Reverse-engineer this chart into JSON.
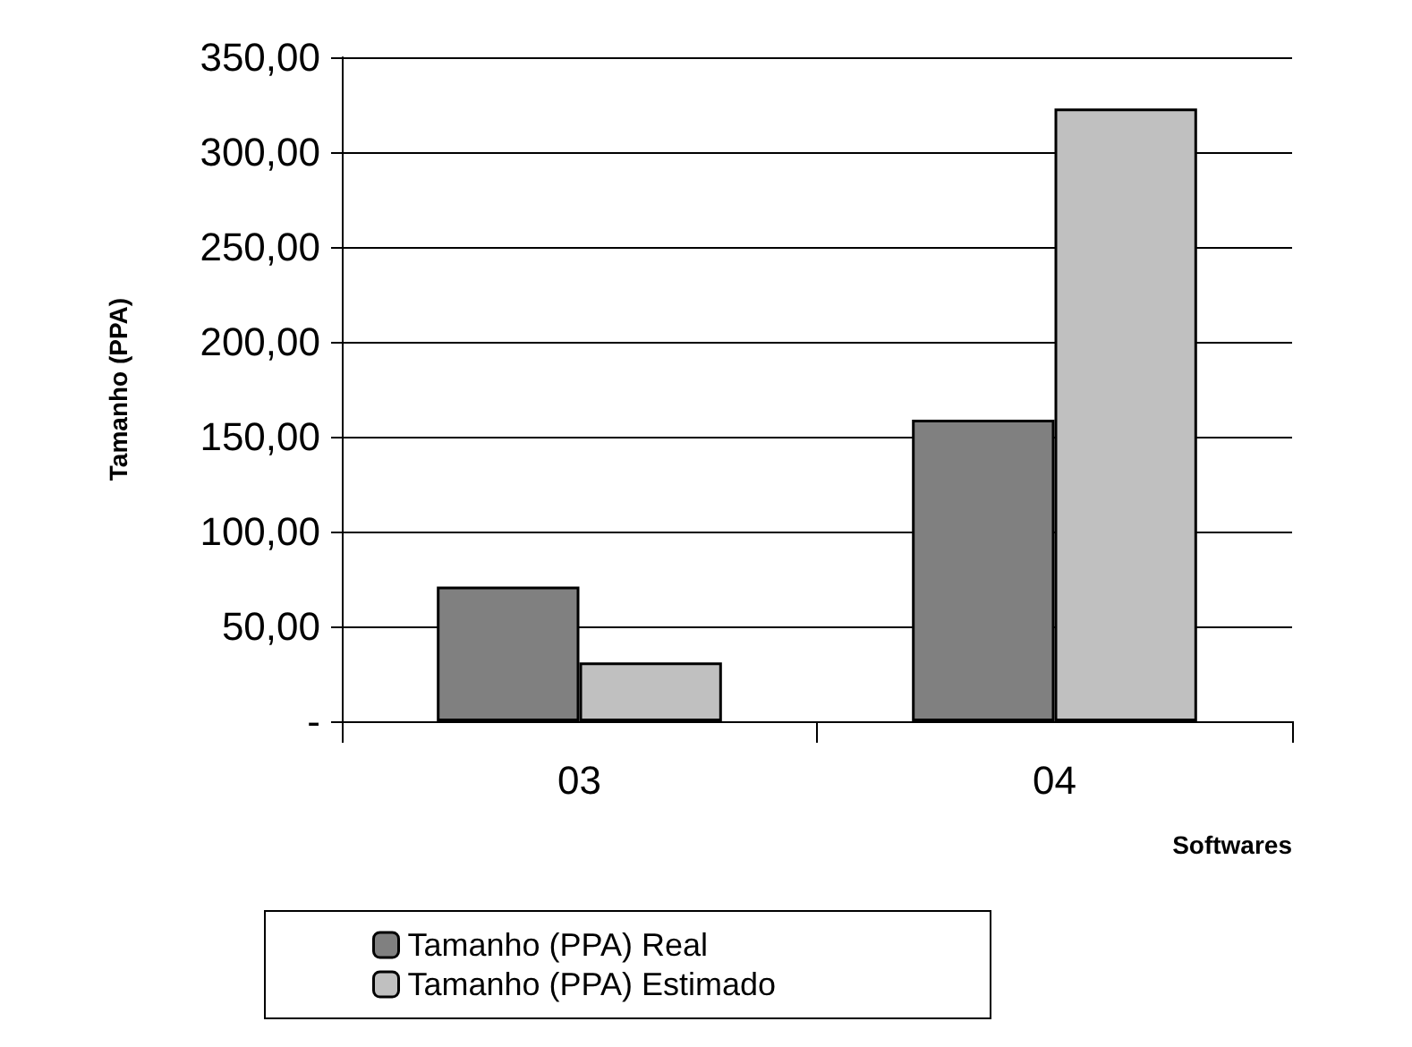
{
  "chart_data": {
    "type": "bar",
    "xlabel": "Softwares",
    "ylabel": "Tamanho (PPA)",
    "categories": [
      "03",
      "04"
    ],
    "series": [
      {
        "name": "Tamanho (PPA) Real",
        "color": "#808080",
        "values": [
          71,
          159
        ]
      },
      {
        "name": "Tamanho (PPA) Estimado",
        "color": "#c0c0c0",
        "values": [
          31,
          323
        ]
      }
    ],
    "ylim": [
      0,
      350
    ],
    "yticks": [
      {
        "value": 0,
        "label": "-"
      },
      {
        "value": 50,
        "label": "50,00"
      },
      {
        "value": 100,
        "label": "100,00"
      },
      {
        "value": 150,
        "label": "150,00"
      },
      {
        "value": 200,
        "label": "200,00"
      },
      {
        "value": 250,
        "label": "250,00"
      },
      {
        "value": 300,
        "label": "300,00"
      },
      {
        "value": 350,
        "label": "350,00"
      }
    ],
    "grid": "y",
    "legend": "bottom"
  }
}
